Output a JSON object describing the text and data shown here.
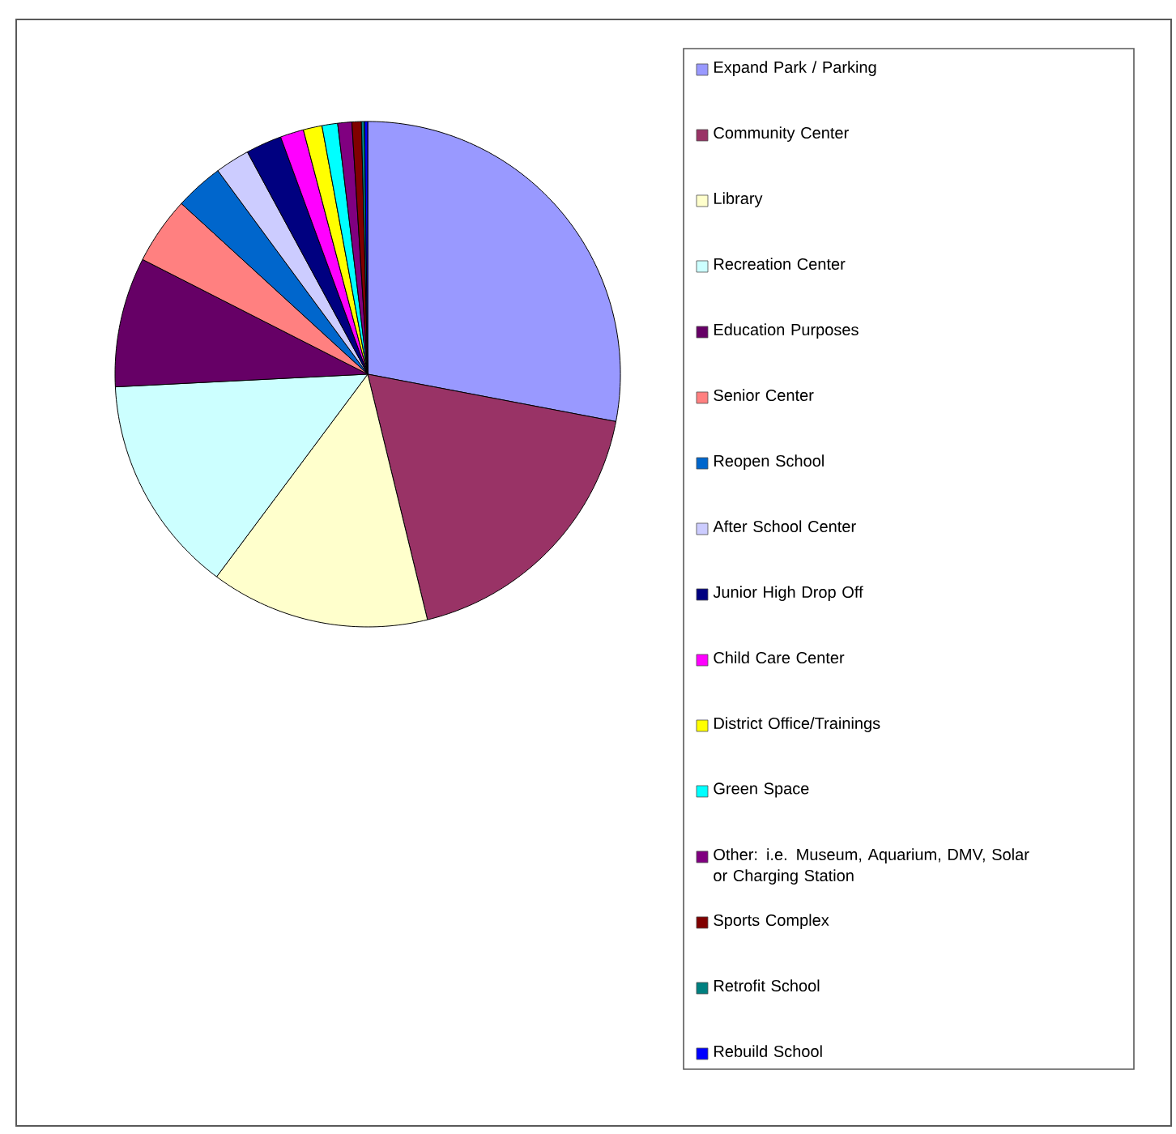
{
  "chart_data": {
    "type": "pie",
    "categories": [
      "Expand Park / Parking",
      "Community Center",
      "Library",
      "Recreation Center",
      "Education Purposes",
      "Senior Center",
      "Reopen School",
      "After School Center",
      "Junior High Drop Off",
      "Child Care Center",
      "District Office/Trainings",
      "Green Space",
      "Other: i.e. Museum, Aquarium, DMV, Solar or Charging Station",
      "Sports Complex",
      "Retrofit School",
      "Rebuild School"
    ],
    "values": [
      28.0,
      18.2,
      14.0,
      14.0,
      8.3,
      4.3,
      3.1,
      2.2,
      2.3,
      1.5,
      1.2,
      1.0,
      0.9,
      0.6,
      0.2,
      0.2
    ],
    "colors": [
      "#9999ff",
      "#993366",
      "#ffffcc",
      "#ccffff",
      "#660066",
      "#ff8080",
      "#0066cc",
      "#ccccff",
      "#000080",
      "#ff00ff",
      "#ffff00",
      "#00ffff",
      "#800080",
      "#800000",
      "#008080",
      "#0000ff"
    ],
    "legend": "right"
  }
}
